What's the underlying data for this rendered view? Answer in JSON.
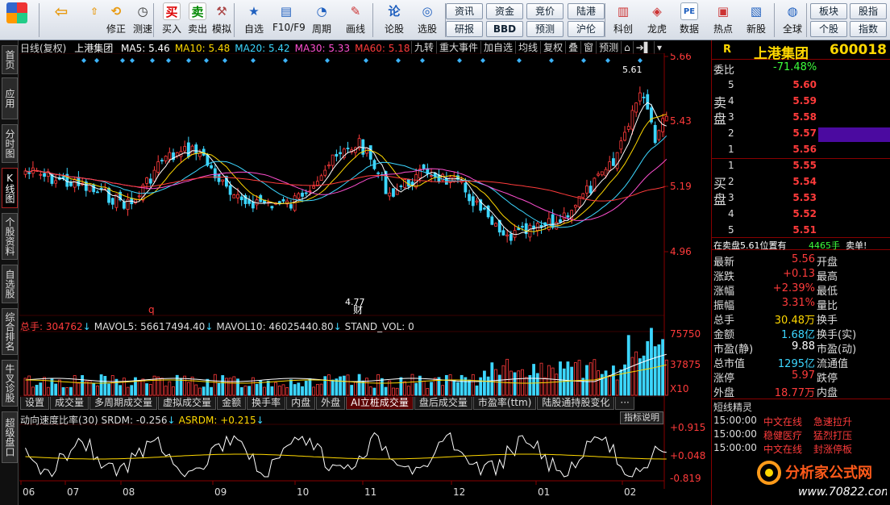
{
  "toolbar": {
    "buttons": [
      {
        "label": "",
        "icon": "grid-icon"
      },
      {
        "label": "",
        "icon": "back-arrow-icon"
      },
      {
        "label": "",
        "icon": "forward-arrow-icon"
      },
      {
        "label": "修正",
        "icon": "refresh-icon"
      },
      {
        "label": "测速",
        "icon": "clock-icon"
      },
      {
        "label": "买入",
        "icon": "buy-icon",
        "glyph": "买"
      },
      {
        "label": "卖出",
        "icon": "sell-icon",
        "glyph": "卖"
      },
      {
        "label": "模拟",
        "icon": "hammer-icon"
      },
      {
        "label": "自选",
        "icon": "star-icon"
      },
      {
        "label": "F10/F9",
        "icon": "doc-icon"
      },
      {
        "label": "周期",
        "icon": "period-icon"
      },
      {
        "label": "画线",
        "icon": "pencil-icon"
      },
      {
        "label": "论股",
        "icon": "forum-icon",
        "glyph": "论"
      },
      {
        "label": "选股",
        "icon": "select-icon"
      },
      {
        "label": "科创",
        "icon": "kechuang-icon"
      },
      {
        "label": "龙虎",
        "icon": "dragon-icon"
      },
      {
        "label": "数据",
        "icon": "pe-icon",
        "glyph": "PE"
      },
      {
        "label": "热点",
        "icon": "hot-icon"
      },
      {
        "label": "新股",
        "icon": "newstock-icon"
      },
      {
        "label": "全球",
        "icon": "globe-icon"
      }
    ],
    "small_buttons": [
      "资讯",
      "资金",
      "竞价",
      "陆港",
      "研报",
      "BBD",
      "预测",
      "沪伦"
    ],
    "right_buttons": [
      "板块",
      "股指",
      "个股",
      "指数"
    ]
  },
  "leftnav": [
    {
      "label": "首页",
      "active": false
    },
    {
      "label": "应用",
      "active": false
    },
    {
      "label": "分时图",
      "active": false
    },
    {
      "label": "K线图",
      "active": true
    },
    {
      "label": "个股资料",
      "active": false
    },
    {
      "label": "自选股",
      "active": false
    },
    {
      "label": "综合排名",
      "active": false
    },
    {
      "label": "牛叉诊股",
      "active": false
    },
    {
      "label": "超级盘口",
      "active": false
    }
  ],
  "chart": {
    "period": "日线(复权)",
    "stock": "上港集团",
    "ma": [
      {
        "label": "MA5: 5.46",
        "color": "#ffffff"
      },
      {
        "label": "MA10: 5.48",
        "color": "#ffd800"
      },
      {
        "label": "MA20: 5.42",
        "color": "#3cd6ff"
      },
      {
        "label": "MA30: 5.33",
        "color": "#ff4fd0"
      },
      {
        "label": "MA60: 5.18",
        "color": "#ff3b3b"
      }
    ],
    "tabs": [
      "九转",
      "重大事件",
      "加自选",
      "均线",
      "复权",
      "叠",
      "窗",
      "预测",
      "⌂",
      "➔▌",
      "▾"
    ],
    "price_axis": [
      "5.66",
      "5.43",
      "5.19",
      "4.96"
    ],
    "high_label": "5.61",
    "low_label": "4.77",
    "q_marker": "q",
    "cai_marker": "财",
    "volume": {
      "header": [
        "总手: 304762",
        "↓",
        "MAVOL5: 56617494.40",
        "↓",
        "MAVOL10: 46025440.80",
        "↓",
        "STAND_VOL: 0"
      ],
      "axis": [
        "75750",
        "37875",
        "X10"
      ]
    },
    "subtabs": [
      {
        "label": "设置",
        "active": false
      },
      {
        "label": "成交量",
        "active": false
      },
      {
        "label": "多周期成交量",
        "active": false
      },
      {
        "label": "虚拟成交量",
        "active": false
      },
      {
        "label": "金额",
        "active": false
      },
      {
        "label": "换手率",
        "active": false
      },
      {
        "label": "内盘",
        "active": false
      },
      {
        "label": "外盘",
        "active": false
      },
      {
        "label": "AI立桩成交量",
        "active": true
      },
      {
        "label": "盘后成交量",
        "active": false
      },
      {
        "label": "市盈率(ttm)",
        "active": false
      },
      {
        "label": "陆股通持股变化",
        "active": false
      },
      {
        "label": "···",
        "active": false
      }
    ],
    "osc": {
      "header": [
        "动向速度比率(30) SRDM: -0.256",
        "↓",
        "ASRDM: +0.215",
        "↓"
      ],
      "help": "指标说明",
      "axis": [
        "+0.915",
        "+0.048",
        "-0.819"
      ]
    },
    "months": [
      "06",
      "07",
      "08",
      "09",
      "10",
      "11",
      "12",
      "01",
      "02"
    ]
  },
  "right": {
    "indicator": "R",
    "name": "上港集团",
    "code": "600018",
    "weibi_label": "委比",
    "weibi_value": "-71.48%",
    "sell_label": "卖盘",
    "buy_label": "买盘",
    "asks": [
      {
        "level": "5",
        "price": "5.60"
      },
      {
        "level": "4",
        "price": "5.59"
      },
      {
        "level": "3",
        "price": "5.58"
      },
      {
        "level": "2",
        "price": "5.57"
      },
      {
        "level": "1",
        "price": "5.56"
      }
    ],
    "bids": [
      {
        "level": "1",
        "price": "5.55"
      },
      {
        "level": "2",
        "price": "5.54"
      },
      {
        "level": "3",
        "price": "5.53"
      },
      {
        "level": "4",
        "price": "5.52"
      },
      {
        "level": "5",
        "price": "5.51"
      }
    ],
    "notice": "在卖盘5.61位置有",
    "notice_qty": "4465手",
    "notice_action": "卖单!",
    "quotes": [
      {
        "l": "最新",
        "v": "5.56",
        "vc": "red",
        "r": "开盘"
      },
      {
        "l": "涨跌",
        "v": "+0.13",
        "vc": "red",
        "r": "最高"
      },
      {
        "l": "涨幅",
        "v": "+2.39%",
        "vc": "red",
        "r": "最低"
      },
      {
        "l": "振幅",
        "v": "3.31%",
        "vc": "red",
        "r": "量比"
      },
      {
        "l": "总手",
        "v": "30.48万",
        "vc": "yellow",
        "r": "换手"
      },
      {
        "l": "金额",
        "v": "1.68亿",
        "vc": "cyan",
        "r": "换手(实)"
      },
      {
        "l": "市盈(静)",
        "v": "9.88",
        "vc": "white",
        "r": "市盈(动)"
      },
      {
        "l": "总市值",
        "v": "1295亿",
        "vc": "cyan",
        "r": "流通值"
      },
      {
        "l": "涨停",
        "v": "5.97",
        "vc": "red",
        "r": "跌停"
      },
      {
        "l": "外盘",
        "v": "18.77万",
        "vc": "red",
        "r": "内盘"
      }
    ],
    "short_title": "短线精灵",
    "short_items": [
      {
        "time": "15:00:00",
        "name": "中文在线",
        "event": "急速拉升"
      },
      {
        "time": "15:00:00",
        "name": "稳健医疗",
        "event": "猛烈打压"
      },
      {
        "time": "15:00:00",
        "name": "中文在线",
        "event": "封涨停板"
      }
    ]
  },
  "logo": {
    "title": "分析家公式网",
    "url": "www.70822.com"
  }
}
